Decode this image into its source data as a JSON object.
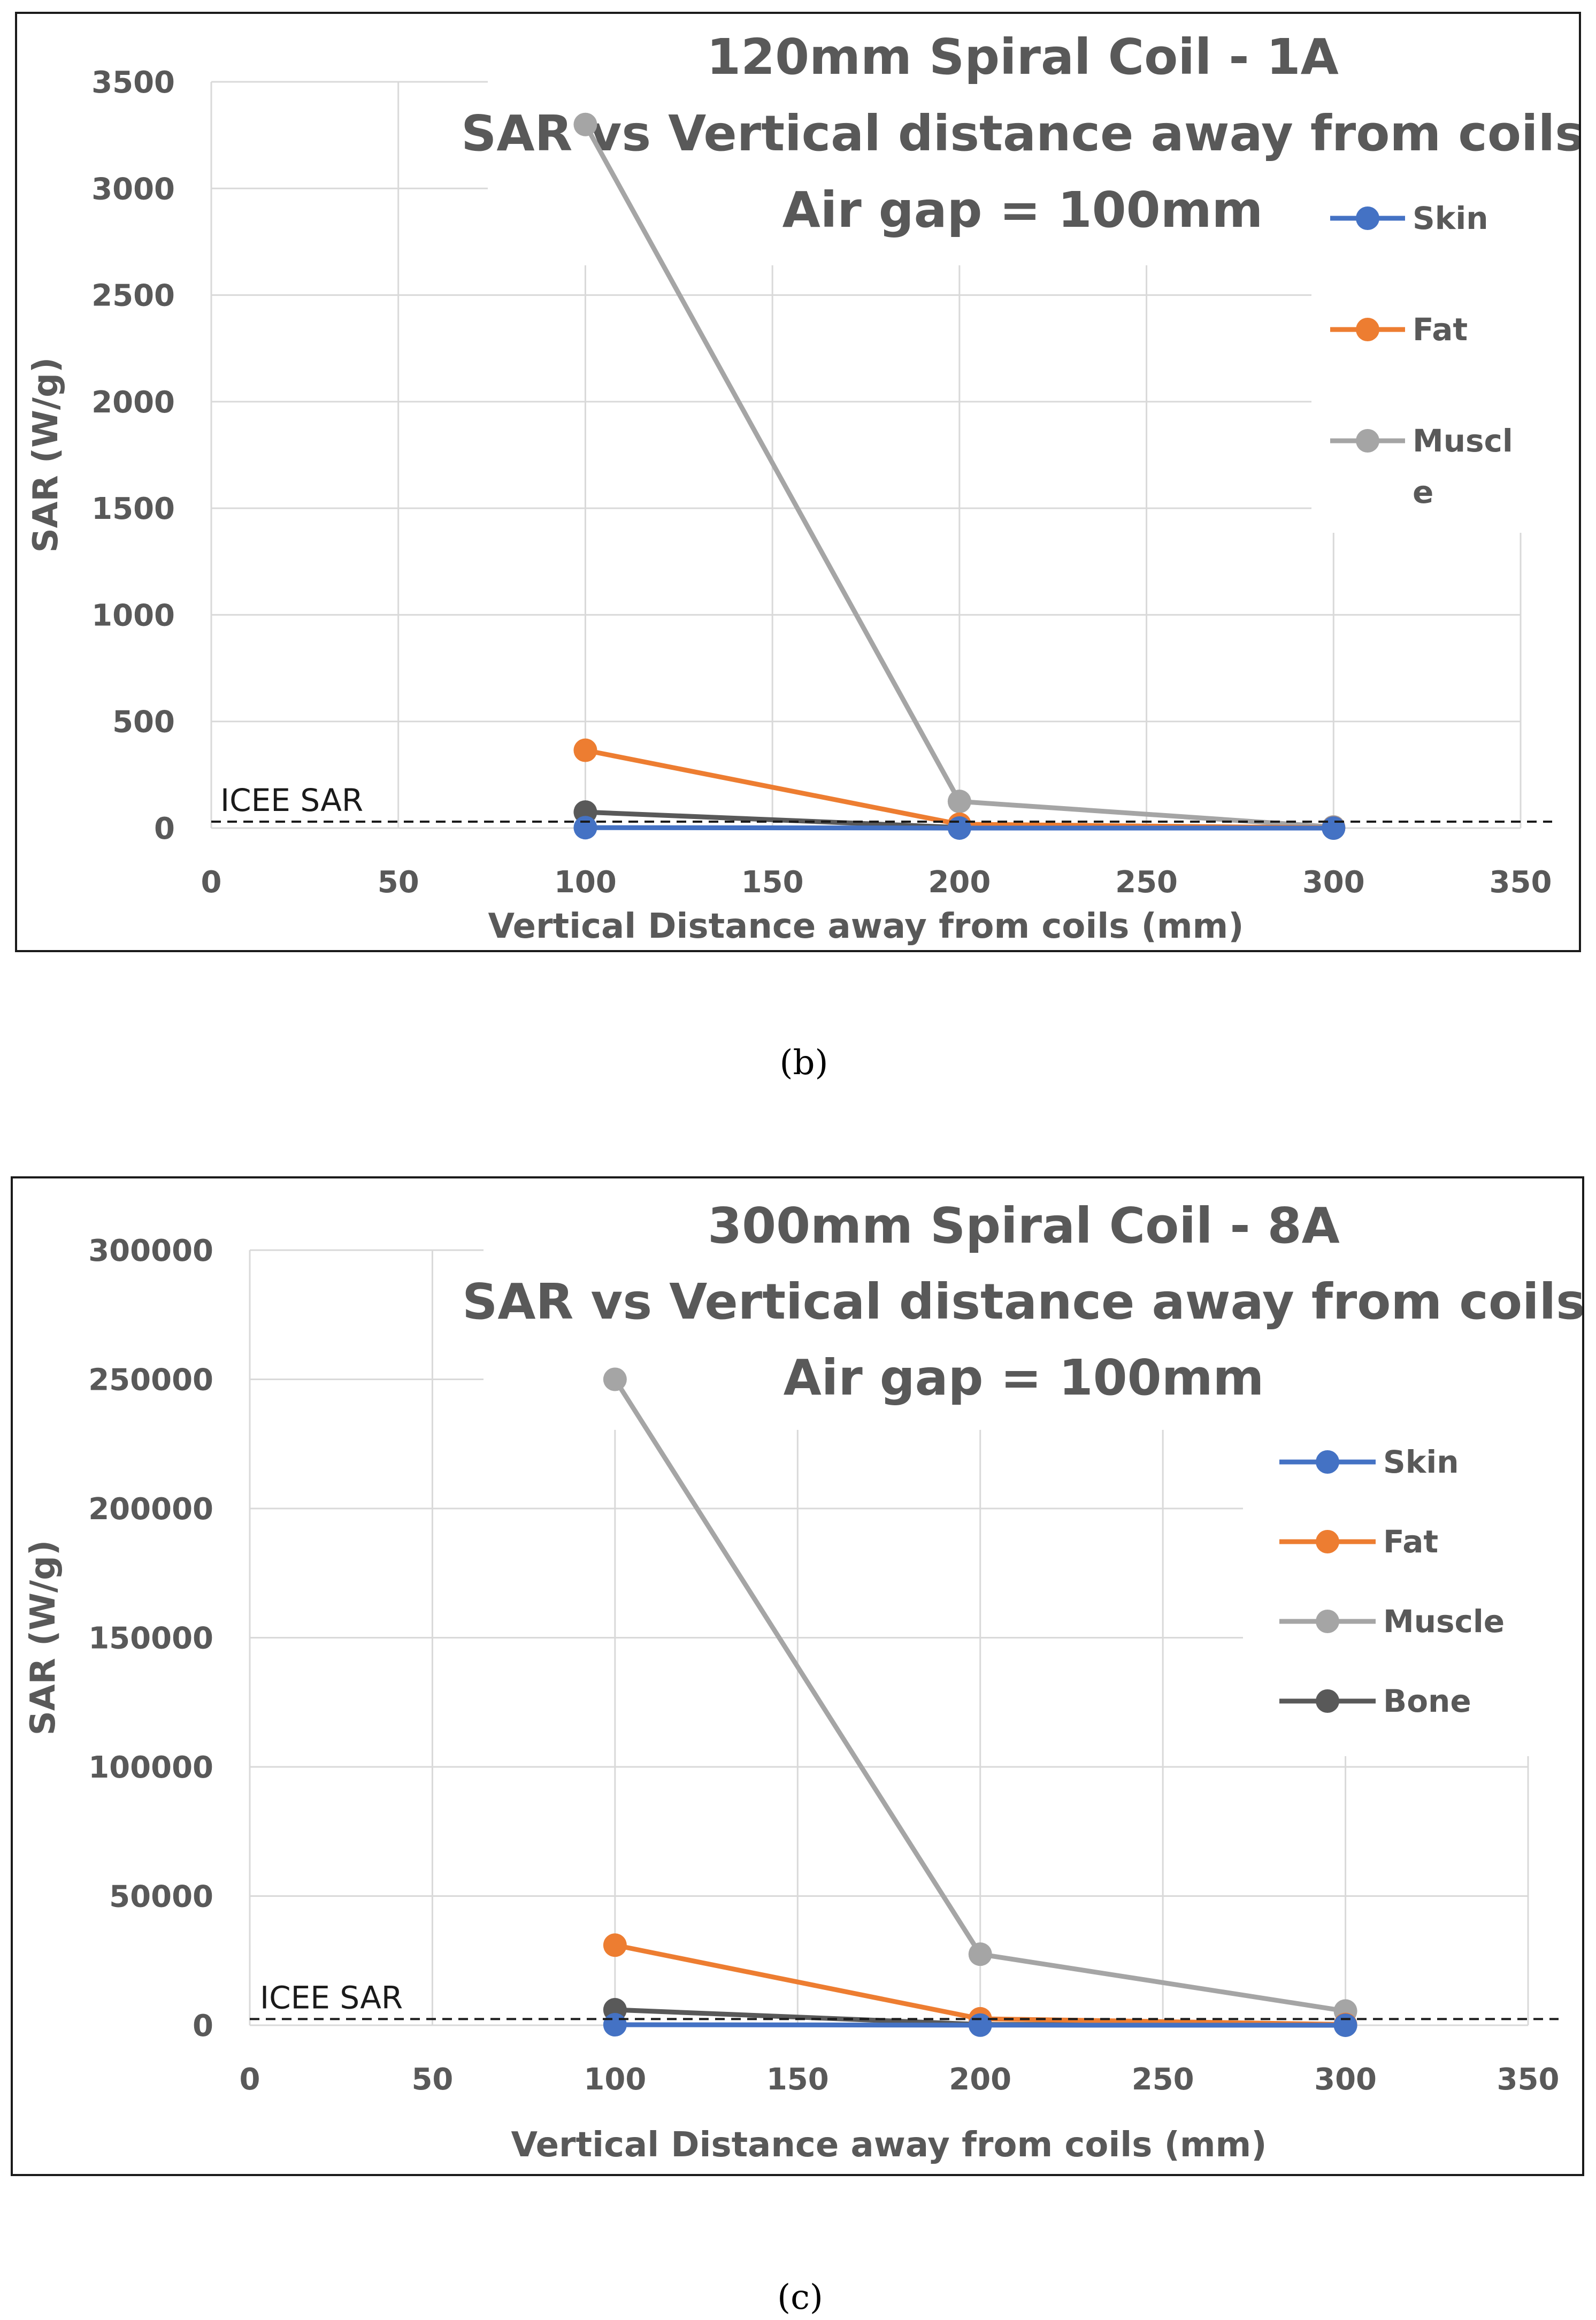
{
  "chart_data": [
    {
      "type": "line",
      "panel_label": "(b)",
      "title": [
        "120mm Spiral Coil - 1A",
        "SAR vs Vertical distance away from coils",
        "Air gap = 100mm"
      ],
      "xlabel": "Vertical Distance away from coils (mm)",
      "ylabel": "SAR (W/g)",
      "xlim": [
        0,
        350
      ],
      "ylim": [
        0,
        3500
      ],
      "xticks": [
        0,
        50,
        100,
        150,
        200,
        250,
        300,
        350
      ],
      "yticks": [
        0,
        500,
        1000,
        1500,
        2000,
        2500,
        3000,
        3500
      ],
      "x": [
        100,
        200,
        300
      ],
      "series": [
        {
          "name": "Bone",
          "color": "#595959",
          "values": [
            75,
            3,
            0
          ],
          "legend": false
        },
        {
          "name": "Muscle",
          "color": "#a5a5a5",
          "values": [
            3300,
            125,
            5
          ],
          "legend": true,
          "legend_label": [
            "Muscl",
            "e"
          ]
        },
        {
          "name": "Fat",
          "color": "#ed7d31",
          "values": [
            365,
            18,
            1
          ],
          "legend": true,
          "legend_label": [
            "Fat"
          ]
        },
        {
          "name": "Skin",
          "color": "#4472c4",
          "values": [
            2,
            0.1,
            0
          ],
          "legend": true,
          "legend_label": [
            "Skin"
          ]
        }
      ],
      "legend_order": [
        "Skin",
        "Fat",
        "Muscle"
      ],
      "reference_line": {
        "label": "ICEE SAR",
        "value": 30
      },
      "legend_position": "right"
    },
    {
      "type": "line",
      "panel_label": "(c)",
      "title": [
        "300mm Spiral Coil - 8A",
        "SAR vs Vertical distance away from coils",
        "Air gap = 100mm"
      ],
      "xlabel": "Vertical Distance away from coils (mm)",
      "ylabel": "SAR (W/g)",
      "xlim": [
        0,
        350
      ],
      "ylim": [
        0,
        300000
      ],
      "xticks": [
        0,
        50,
        100,
        150,
        200,
        250,
        300,
        350
      ],
      "yticks": [
        0,
        50000,
        100000,
        150000,
        200000,
        250000,
        300000
      ],
      "x": [
        100,
        200,
        300
      ],
      "series": [
        {
          "name": "Bone",
          "color": "#595959",
          "values": [
            6000,
            300,
            50
          ],
          "legend": true,
          "legend_label": [
            "Bone"
          ]
        },
        {
          "name": "Muscle",
          "color": "#a5a5a5",
          "values": [
            250000,
            27500,
            5500
          ],
          "legend": true,
          "legend_label": [
            "Muscle"
          ]
        },
        {
          "name": "Fat",
          "color": "#ed7d31",
          "values": [
            31000,
            2500,
            300
          ],
          "legend": true,
          "legend_label": [
            "Fat"
          ]
        },
        {
          "name": "Skin",
          "color": "#4472c4",
          "values": [
            200,
            50,
            10
          ],
          "legend": true,
          "legend_label": [
            "Skin"
          ]
        }
      ],
      "legend_order": [
        "Skin",
        "Fat",
        "Muscle",
        "Bone"
      ],
      "reference_line": {
        "label": "ICEE SAR",
        "value": 2400
      },
      "legend_position": "right"
    }
  ]
}
